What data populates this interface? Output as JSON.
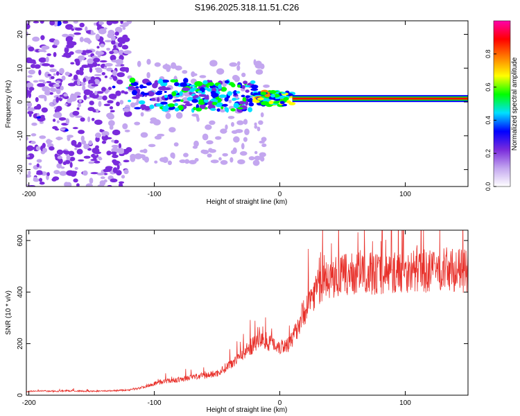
{
  "figure_title": "S196.2025.318.11.51.C26",
  "chart_data": [
    {
      "type": "heatmap",
      "title": "S196.2025.318.11.51.C26",
      "xlabel": "Height of straight line (km)",
      "ylabel": "Frequency (Hz)",
      "xlim": [
        -202,
        150
      ],
      "ylim": [
        -25,
        24
      ],
      "x_ticks": [
        -200,
        -100,
        0,
        100
      ],
      "y_ticks": [
        -20,
        -10,
        0,
        10,
        20
      ],
      "colorbar": {
        "label": "Normalized spectral amplitude",
        "range": [
          0,
          1
        ],
        "ticks": [
          0.0,
          0.2,
          0.4,
          0.6,
          0.8
        ],
        "colors": [
          "#ffffff",
          "#c3a6ef",
          "#7a2bdc",
          "#0000ff",
          "#00e0ff",
          "#00ff00",
          "#ffff00",
          "#ff8000",
          "#ff0000",
          "#ff00aa"
        ]
      },
      "regions": [
        {
          "x_from": -202,
          "x_to": -120,
          "description": "scattered noise blobs across full frequency band",
          "amplitude": 0.1
        },
        {
          "x_from": -120,
          "x_to": -20,
          "freq_center": 2,
          "description": "noisy band near 0-5 Hz",
          "amplitude": 0.3
        },
        {
          "x_from": -20,
          "x_to": 10,
          "freq_center": 1,
          "description": "emerging tone",
          "amplitude": 0.5
        },
        {
          "x_from": 10,
          "x_to": 150,
          "freq_center": 1,
          "description": "strong steady tone",
          "amplitude": 1.0
        }
      ]
    },
    {
      "type": "line",
      "xlabel": "Height of straight line (km)",
      "ylabel": "SNR (10 * v/v)",
      "xlim": [
        -202,
        150
      ],
      "ylim": [
        0,
        640
      ],
      "x_ticks": [
        -200,
        -100,
        0,
        100
      ],
      "y_ticks": [
        0,
        200,
        400,
        600
      ],
      "series": [
        {
          "name": "SNR",
          "color": "#e8302a",
          "x": [
            -202,
            -190,
            -180,
            -170,
            -160,
            -150,
            -140,
            -130,
            -120,
            -110,
            -100,
            -90,
            -80,
            -70,
            -60,
            -50,
            -45,
            -40,
            -35,
            -30,
            -25,
            -20,
            -15,
            -10,
            -5,
            0,
            5,
            10,
            15,
            20,
            25,
            30,
            40,
            50,
            60,
            70,
            80,
            90,
            100,
            110,
            120,
            130,
            140,
            150
          ],
          "y": [
            15,
            16,
            15,
            17,
            16,
            15,
            16,
            18,
            20,
            30,
            45,
            55,
            60,
            70,
            75,
            85,
            100,
            120,
            140,
            160,
            180,
            200,
            215,
            210,
            200,
            190,
            195,
            210,
            280,
            330,
            380,
            420,
            450,
            465,
            470,
            475,
            470,
            475,
            480,
            485,
            480,
            490,
            485,
            480
          ]
        }
      ]
    }
  ]
}
